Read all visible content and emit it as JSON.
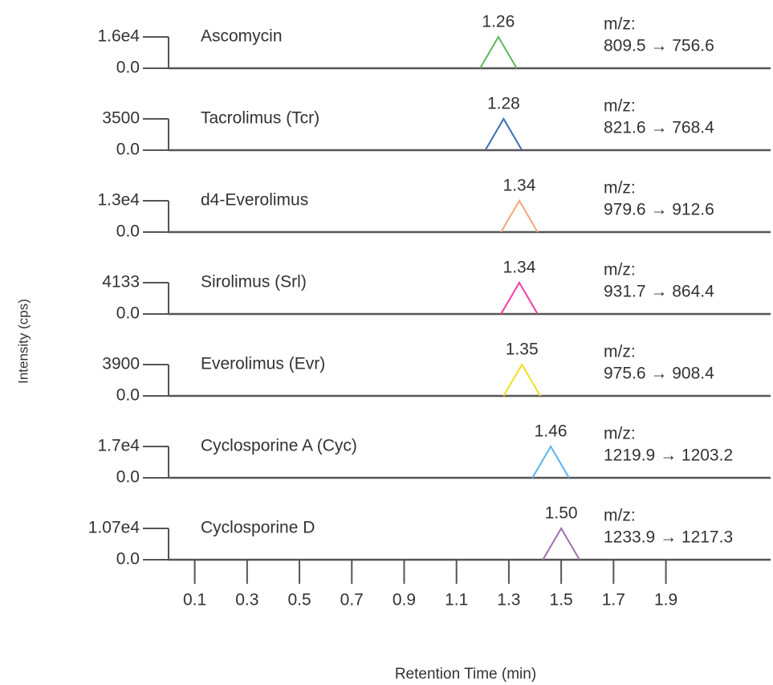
{
  "chart_data": {
    "type": "line",
    "x_label": "Retention Time (min)",
    "y_label": "Intensity (cps)",
    "xlim": [
      0,
      2.3
    ],
    "xticks": [
      0.1,
      0.3,
      0.5,
      0.7,
      0.9,
      1.1,
      1.3,
      1.5,
      1.7,
      1.9
    ],
    "mz_label": "m/z:",
    "series": [
      {
        "name": "Ascomycin",
        "color": "#5cb85c",
        "x": [
          1.19,
          1.26,
          1.33
        ],
        "values": [
          0,
          16000,
          0
        ],
        "apex_label": "1.26",
        "transition": "809.5 → 756.6",
        "ylim": [
          0,
          16000
        ],
        "yticks": [
          {
            "value": 16000,
            "label": "1.6e4"
          },
          {
            "value": 0,
            "label": "0.0"
          }
        ]
      },
      {
        "name": "Tacrolimus (Tcr)",
        "color": "#3a6fb0",
        "x": [
          1.21,
          1.28,
          1.35
        ],
        "values": [
          0,
          3500,
          0
        ],
        "apex_label": "1.28",
        "transition": "821.6 → 768.4",
        "ylim": [
          0,
          3500
        ],
        "yticks": [
          3500,
          {
            "value": 0,
            "label": "0.0"
          }
        ]
      },
      {
        "name": "d4-Everolimus",
        "color": "#f5a57a",
        "x": [
          1.27,
          1.34,
          1.41
        ],
        "values": [
          0,
          13000,
          0
        ],
        "apex_label": "1.34",
        "transition": "979.6 → 912.6",
        "ylim": [
          0,
          13000
        ],
        "yticks": [
          {
            "value": 13000,
            "label": "1.3e4"
          },
          {
            "value": 0,
            "label": "0.0"
          }
        ]
      },
      {
        "name": "Sirolimus (Srl)",
        "color": "#f03caa",
        "x": [
          1.27,
          1.34,
          1.41
        ],
        "values": [
          0,
          4133,
          0
        ],
        "apex_label": "1.34",
        "transition": "931.7 → 864.4",
        "ylim": [
          0,
          4133
        ],
        "yticks": [
          4133,
          {
            "value": 0,
            "label": "0.0"
          }
        ]
      },
      {
        "name": "Everolimus (Evr)",
        "color": "#f0e020",
        "x": [
          1.28,
          1.35,
          1.42
        ],
        "values": [
          0,
          3900,
          0
        ],
        "apex_label": "1.35",
        "transition": "975.6 → 908.4",
        "ylim": [
          0,
          3900
        ],
        "yticks": [
          3900,
          {
            "value": 0,
            "label": "0.0"
          }
        ]
      },
      {
        "name": "Cyclosporine A (Cyc)",
        "color": "#5ab4f0",
        "x": [
          1.39,
          1.46,
          1.53
        ],
        "values": [
          0,
          17000,
          0
        ],
        "apex_label": "1.46",
        "transition": "1219.9 → 1203.2",
        "ylim": [
          0,
          17000
        ],
        "yticks": [
          {
            "value": 17000,
            "label": "1.7e4"
          },
          {
            "value": 0,
            "label": "0.0"
          }
        ]
      },
      {
        "name": "Cyclosporine D",
        "color": "#a070b0",
        "x": [
          1.43,
          1.5,
          1.57
        ],
        "values": [
          0,
          10700,
          0
        ],
        "apex_label": "1.50",
        "transition": "1233.9 → 1217.3",
        "ylim": [
          0,
          10700
        ],
        "yticks": [
          {
            "value": 10700,
            "label": "1.07e4"
          },
          {
            "value": 0,
            "label": "0.0"
          }
        ]
      }
    ]
  }
}
